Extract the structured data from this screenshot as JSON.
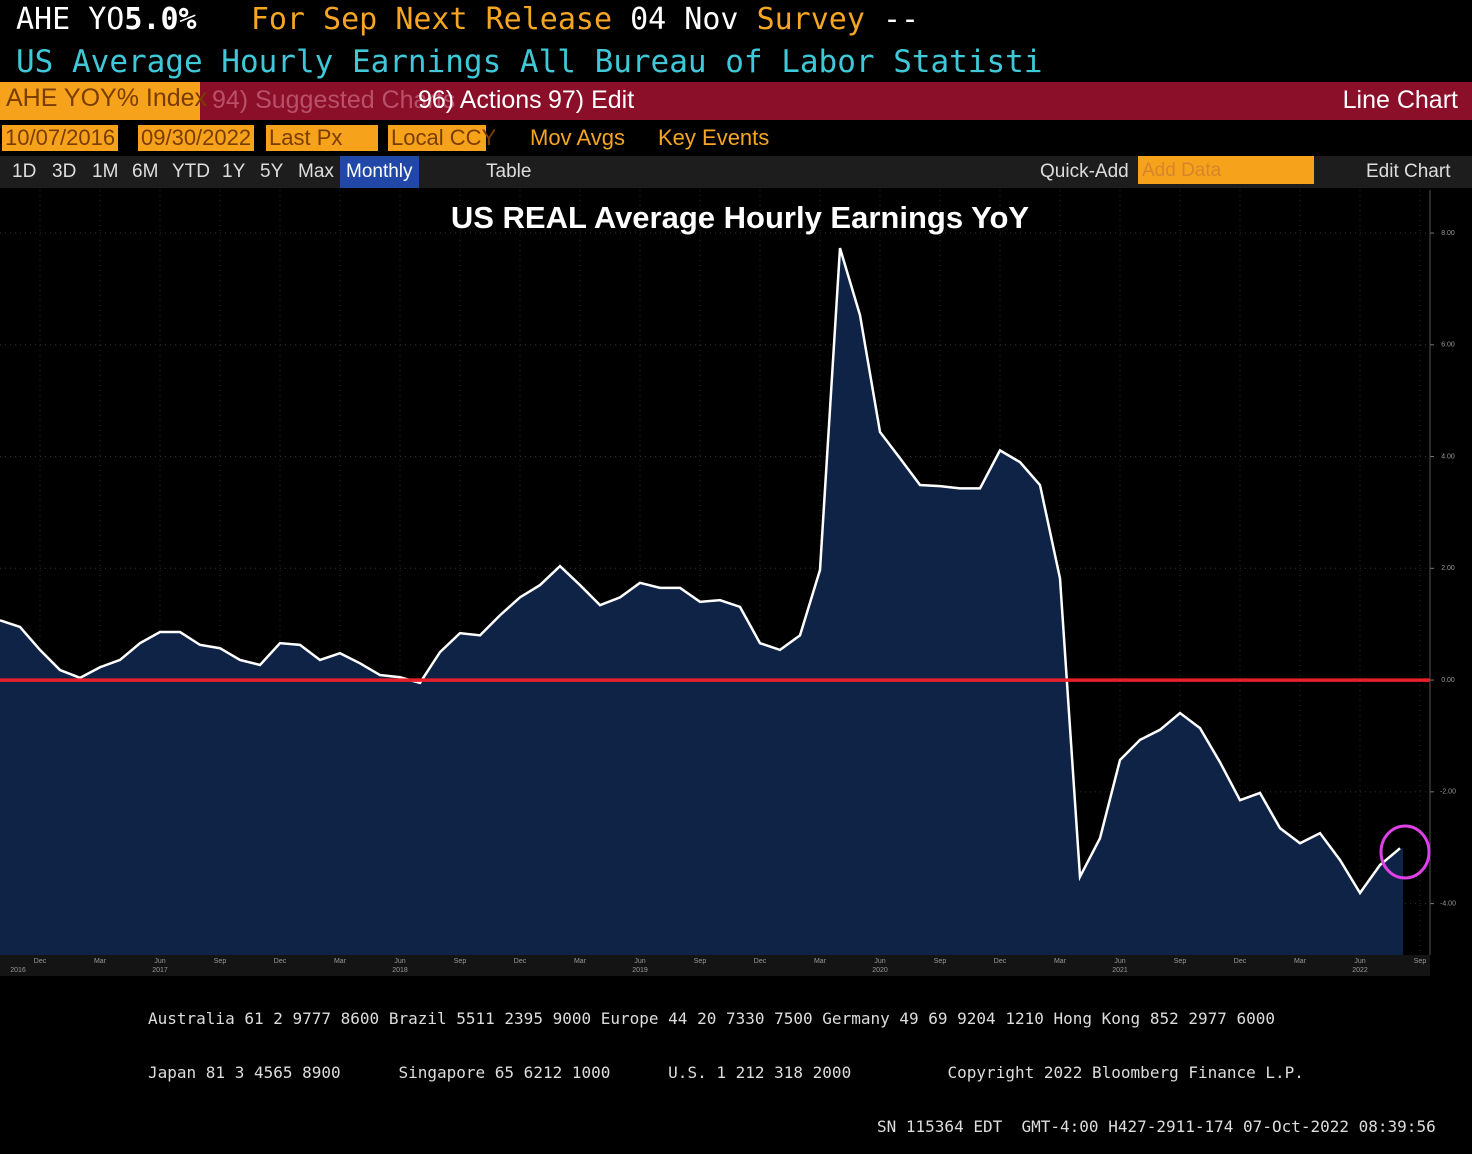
{
  "header": {
    "ticker": "AHE YO",
    "value": "5.0%",
    "for_label": "For Sep",
    "next_label": "Next Release",
    "next_date": "04 Nov",
    "survey_label": "Survey",
    "survey_value": "--",
    "description": "US Average Hourly Earnings All Bureau of Labor Statisti"
  },
  "toolbar1": {
    "security": "AHE YOY% Index",
    "suggested": "94) Suggested Charts",
    "actions": "96) Actions",
    "edit": "97) Edit",
    "chart_type": "Line Chart"
  },
  "toolbar2": {
    "start": "10/07/2016",
    "end": "09/30/2022",
    "field": "Last Px",
    "currency": "Local CCY",
    "mov_avgs": "Mov Avgs",
    "key_events": "Key Events"
  },
  "toolbar3": {
    "ranges": [
      "1D",
      "3D",
      "1M",
      "6M",
      "YTD",
      "1Y",
      "5Y",
      "Max"
    ],
    "period": "Monthly",
    "table": "Table",
    "quick_add": "Quick-Add",
    "add_data": "Add Data",
    "edit_chart": "Edit Chart"
  },
  "chart_data": {
    "type": "line",
    "title": "US REAL Average Hourly Earnings YoY",
    "categories": [
      null,
      null,
      "Dec",
      null,
      null,
      "Mar",
      null,
      null,
      "Jun",
      null,
      null,
      "Sep",
      null,
      null,
      "Dec",
      null,
      null,
      "Mar",
      null,
      null,
      "Jun",
      null,
      null,
      "Sep",
      null,
      null,
      "Dec",
      null,
      null,
      "Mar",
      null,
      null,
      "Jun",
      null,
      null,
      "Sep",
      null,
      null,
      "Dec",
      null,
      null,
      "Mar",
      null,
      null,
      "Jun",
      null,
      null,
      "Sep",
      null,
      null,
      "Dec",
      null,
      null,
      "Mar",
      null,
      null,
      "Jun",
      null,
      null,
      "Sep",
      null,
      null,
      "Dec",
      null,
      null,
      "Mar",
      null,
      null,
      "Jun",
      null,
      null,
      "Sep"
    ],
    "years": [
      "2016",
      null,
      null,
      null,
      null,
      null,
      null,
      null,
      "2017",
      null,
      null,
      null,
      null,
      null,
      null,
      null,
      null,
      null,
      null,
      null,
      "2018",
      null,
      null,
      null,
      null,
      null,
      null,
      null,
      null,
      null,
      null,
      null,
      "2019",
      null,
      null,
      null,
      null,
      null,
      null,
      null,
      null,
      null,
      null,
      null,
      "2020",
      null,
      null,
      null,
      null,
      null,
      null,
      null,
      null,
      null,
      null,
      null,
      "2021",
      null,
      null,
      null,
      null,
      null,
      null,
      null,
      null,
      null,
      null,
      null,
      "2022",
      null,
      null,
      null
    ],
    "series": [
      {
        "name": "AHE YOY% Index",
        "color": "#ffffff",
        "fill": "#0f2346",
        "values": [
          1.07,
          0.95,
          0.54,
          0.18,
          0.04,
          0.23,
          0.36,
          0.66,
          0.86,
          0.86,
          0.63,
          0.57,
          0.36,
          0.27,
          0.66,
          0.63,
          0.36,
          0.48,
          0.3,
          0.09,
          0.05,
          -0.05,
          0.5,
          0.84,
          0.8,
          1.16,
          1.48,
          1.7,
          2.04,
          1.7,
          1.34,
          1.48,
          1.74,
          1.65,
          1.65,
          1.4,
          1.43,
          1.31,
          0.66,
          0.54,
          0.8,
          1.97,
          7.73,
          6.53,
          4.44,
          3.97,
          3.49,
          3.47,
          3.43,
          3.43,
          4.11,
          3.9,
          3.49,
          1.82,
          -3.52,
          -2.83,
          -1.43,
          -1.07,
          -0.89,
          -0.59,
          -0.86,
          -1.47,
          -2.15,
          -2.02,
          -2.65,
          -2.92,
          -2.74,
          -3.22,
          -3.81,
          -3.31,
          -3.01,
          null
        ]
      }
    ],
    "reference_line": {
      "value": 0,
      "color": "#e8202a"
    },
    "ylim": [
      -4.92,
      8.77
    ],
    "yticks": [
      {
        "value": -4,
        "label": "-4.00"
      },
      {
        "value": -2,
        "label": "-2.00"
      },
      {
        "value": 0,
        "label": "0.00"
      },
      {
        "value": 2,
        "label": "2.00"
      },
      {
        "value": 4,
        "label": "4.00"
      },
      {
        "value": 6,
        "label": "6.00"
      },
      {
        "value": 8,
        "label": "8.00"
      }
    ],
    "grid": true
  },
  "footer": {
    "lines": [
      "Australia 61 2 9777 8600 Brazil 5511 2395 9000 Europe 44 20 7330 7500 Germany 49 69 9204 1210 Hong Kong 852 2977 6000",
      "Japan 81 3 4565 8900      Singapore 65 6212 1000      U.S. 1 212 318 2000          Copyright 2022 Bloomberg Finance L.P.",
      "SN 115364 EDT  GMT-4:00 H427-2911-174 07-Oct-2022 08:39:56"
    ]
  }
}
